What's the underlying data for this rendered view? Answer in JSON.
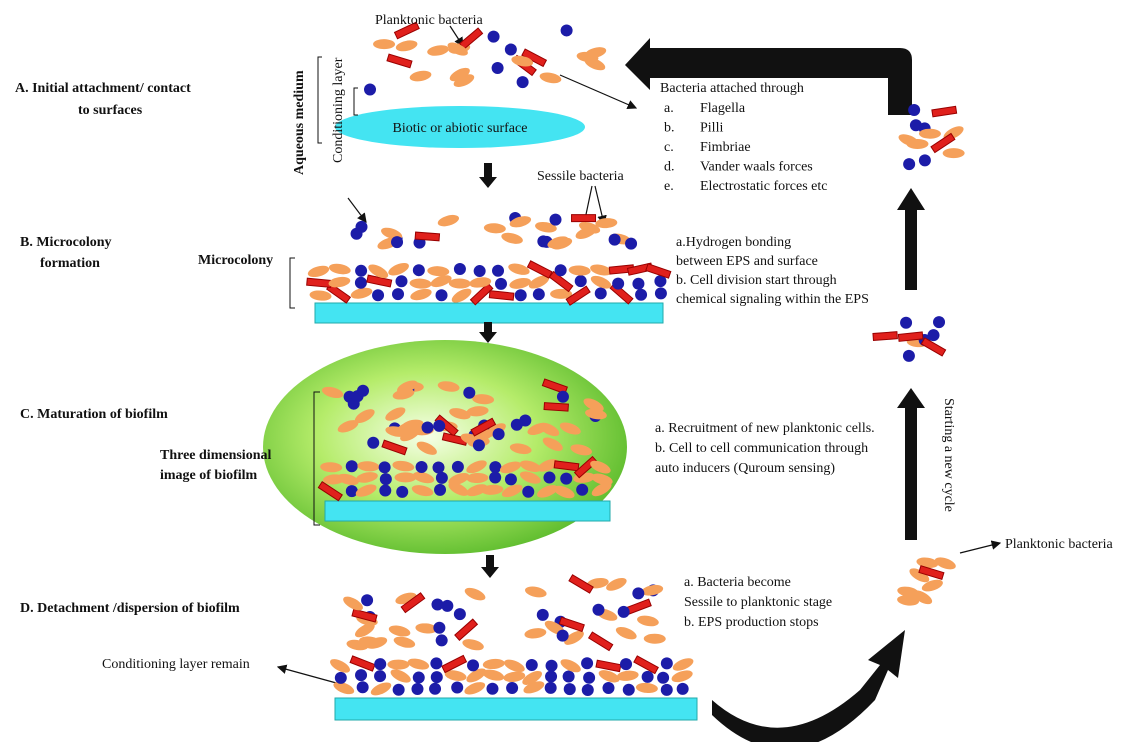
{
  "stage_a": {
    "label": [
      "A. Initial attachment/ contact",
      "to surfaces"
    ],
    "aqueous": "Aqueous  medium",
    "conditioning": "Conditioning  layer",
    "planktonic": "Planktonic bacteria",
    "surface": "Biotic or abiotic surface",
    "attached_title": "Bacteria attached through",
    "attached_items": [
      [
        "a.",
        "Flagella"
      ],
      [
        "b.",
        "Pilli"
      ],
      [
        "c.",
        "Fimbriae"
      ],
      [
        "d.",
        "Vander waals forces"
      ],
      [
        "e.",
        "Electrostatic forces etc"
      ]
    ]
  },
  "stage_b": {
    "label": [
      "B. Microcolony",
      "formation"
    ],
    "microcolony": "Microcolony",
    "sessile": "Sessile bacteria",
    "notes": [
      "a.Hydrogen bonding",
      "between EPS and surface",
      "b. Cell division  start through",
      " chemical signaling  within the EPS"
    ]
  },
  "stage_c": {
    "label": [
      "C. Maturation  of biofilm"
    ],
    "image": [
      "Three dimensional",
      "image of biofilm"
    ],
    "notes": [
      "a. Recruitment of new planktonic  cells.",
      "b. Cell to cell communication  through",
      "auto inducers (Quroum sensing)"
    ]
  },
  "stage_d": {
    "label": [
      "D. Detachment /dispersion  of biofilm"
    ],
    "remain": "Conditioning  layer remain",
    "notes": [
      "a. Bacteria become",
      "Sessile to planktonic stage",
      "b. EPS production stops"
    ]
  },
  "cycle": {
    "new_cycle": "Starting a new cycle",
    "planktonic": "Planktonic bacteria"
  }
}
